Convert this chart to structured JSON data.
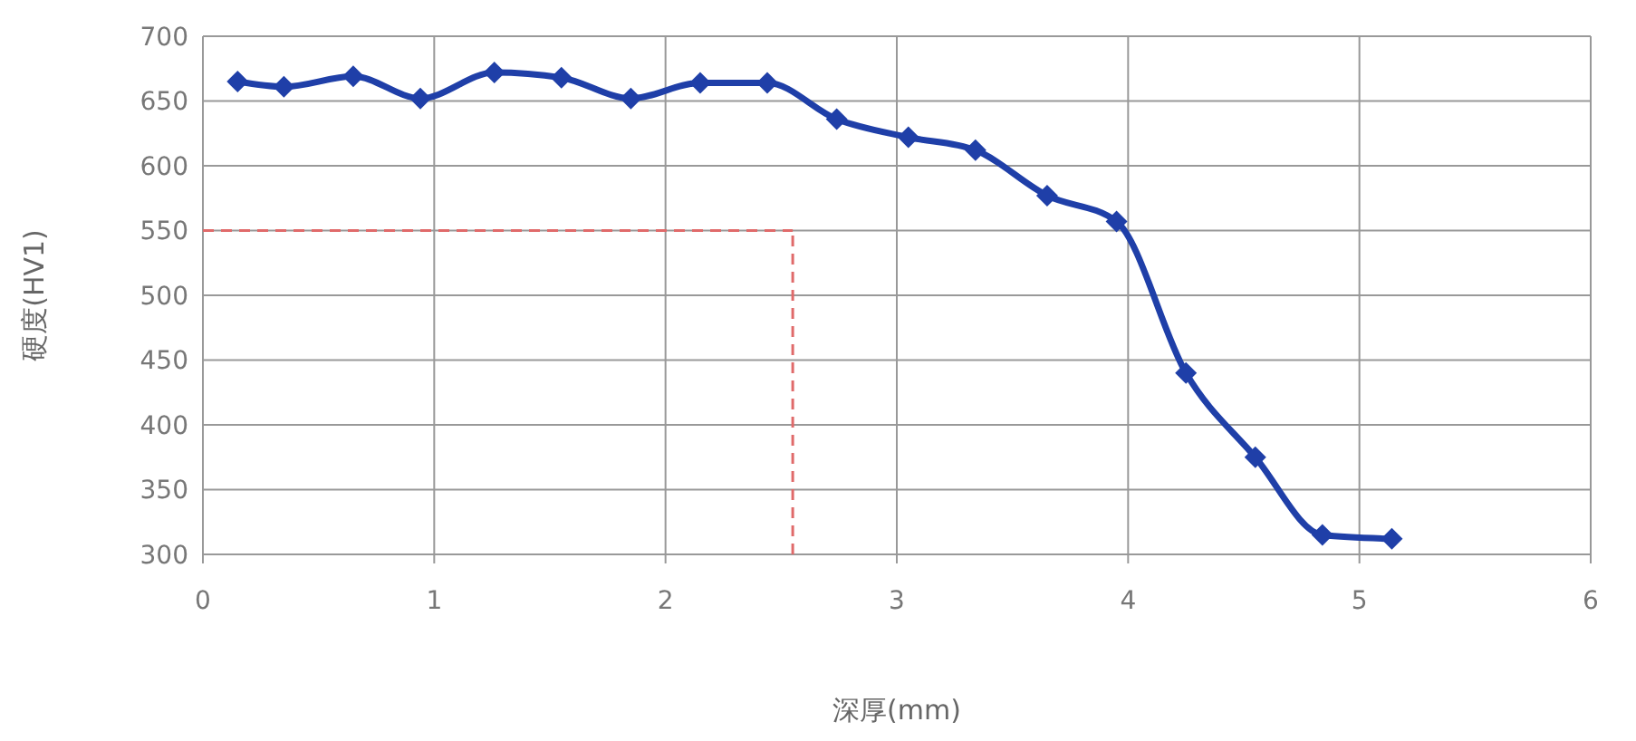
{
  "chart_data": {
    "type": "line",
    "xlabel": "深厚(mm)",
    "ylabel": "硬度(HV1)",
    "x": [
      0.15,
      0.35,
      0.65,
      0.94,
      1.26,
      1.55,
      1.85,
      2.15,
      2.44,
      2.74,
      3.05,
      3.34,
      3.65,
      3.95,
      4.25,
      4.55,
      4.84,
      5.14
    ],
    "series": [
      {
        "color": "#1f3fa8",
        "values": [
          665,
          661,
          669,
          652,
          672,
          668,
          652,
          664,
          664,
          636,
          622,
          612,
          577,
          557,
          440,
          375,
          315,
          312
        ]
      }
    ],
    "xlim": [
      0,
      6
    ],
    "xticks": [
      0,
      1,
      2,
      3,
      4,
      5,
      6
    ],
    "ylim": [
      300,
      700
    ],
    "yticks": [
      300,
      350,
      400,
      450,
      500,
      550,
      600,
      650,
      700
    ],
    "grid": true,
    "marker": "diamond",
    "line_style": "solid",
    "ref_lines": [
      {
        "axis": "y",
        "value": 550,
        "color": "#e06a6a",
        "line_style": "dashed"
      },
      {
        "axis": "x",
        "value": 2.55,
        "color": "#e06a6a",
        "line_style": "dashed"
      }
    ]
  }
}
